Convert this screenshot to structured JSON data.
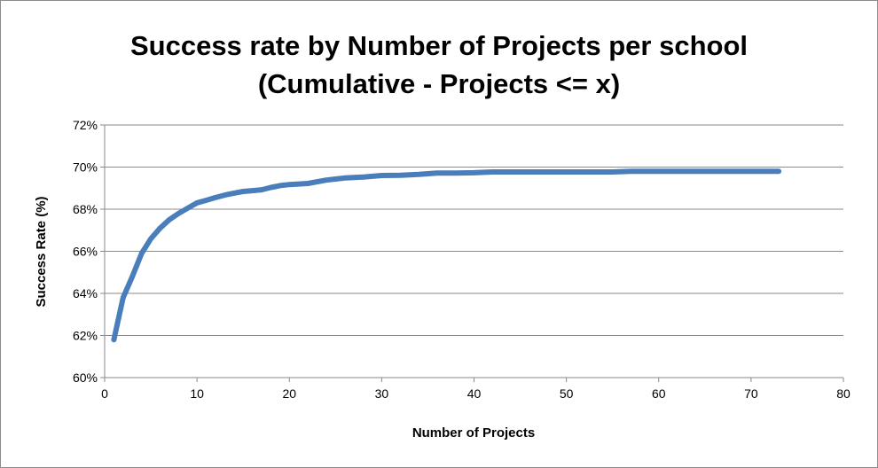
{
  "chart_data": {
    "type": "line",
    "title_lines": [
      "Success rate by Number of Projects per school",
      "(Cumulative - Projects <= x)"
    ],
    "xlabel": "Number of Projects",
    "ylabel": "Success Rate (%)",
    "xlim": [
      0,
      80
    ],
    "ylim": [
      60,
      72
    ],
    "x_ticks": [
      0,
      10,
      20,
      30,
      40,
      50,
      60,
      70,
      80
    ],
    "x_tick_labels": [
      "0",
      "10",
      "20",
      "30",
      "40",
      "50",
      "60",
      "70",
      "80"
    ],
    "y_ticks": [
      60,
      62,
      64,
      66,
      68,
      70,
      72
    ],
    "y_tick_labels": [
      "60%",
      "62%",
      "64%",
      "66%",
      "68%",
      "70%",
      "72%"
    ],
    "grid": "horizontal",
    "legend": "none",
    "series": [
      {
        "color": "#4a7ebb",
        "x": [
          1,
          2,
          3,
          4,
          5,
          6,
          7,
          8,
          9,
          10,
          11,
          12,
          13,
          14,
          15,
          16,
          17,
          18,
          19,
          20,
          22,
          24,
          26,
          28,
          30,
          32,
          34,
          36,
          38,
          40,
          42,
          45,
          50,
          55,
          57,
          60,
          65,
          70,
          73
        ],
        "y": [
          61.8,
          63.8,
          64.8,
          65.9,
          66.6,
          67.1,
          67.5,
          67.8,
          68.05,
          68.3,
          68.42,
          68.55,
          68.67,
          68.76,
          68.84,
          68.88,
          68.92,
          69.03,
          69.12,
          69.17,
          69.22,
          69.38,
          69.48,
          69.53,
          69.6,
          69.61,
          69.65,
          69.72,
          69.72,
          69.73,
          69.77,
          69.77,
          69.77,
          69.77,
          69.8,
          69.8,
          69.8,
          69.8,
          69.8
        ]
      }
    ]
  }
}
